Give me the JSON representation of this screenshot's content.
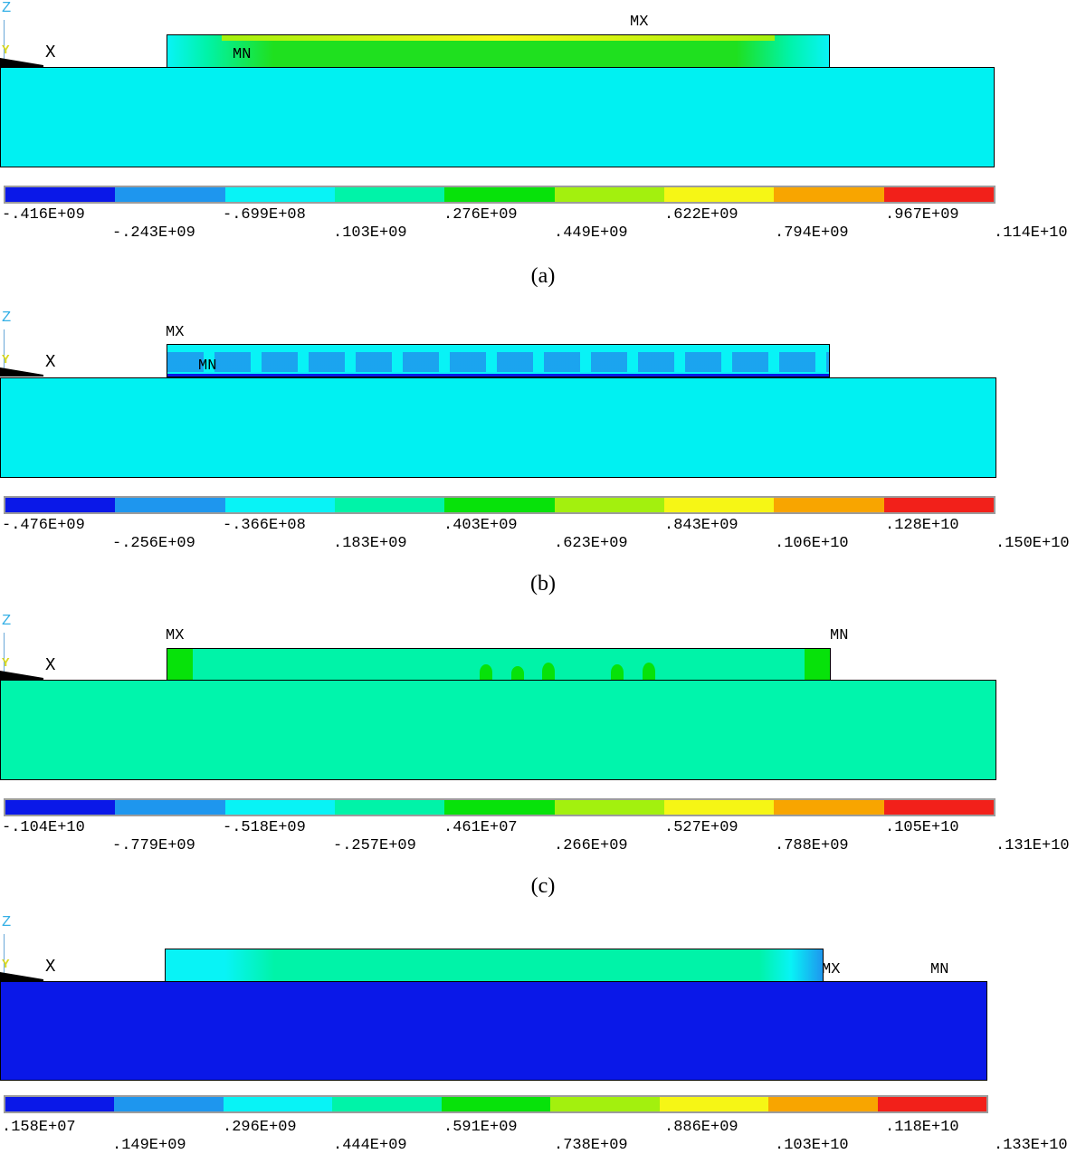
{
  "axes": {
    "z": "Z",
    "y": "Y",
    "x": "X"
  },
  "markers": {
    "mx": "MX",
    "mn": "MN"
  },
  "colors": [
    "#0a18e8",
    "#1e96ee",
    "#08f3f6",
    "#00f3a8",
    "#07e20a",
    "#a3f00e",
    "#f6f615",
    "#f8a500",
    "#f2201a"
  ],
  "panels": [
    {
      "caption": "(a)",
      "substrate_color": "#00f1f2",
      "film_color": "#1fe01f",
      "legend_top": [
        "-.416E+09",
        "-.699E+08",
        ".276E+09",
        ".622E+09",
        ".967E+09"
      ],
      "legend_bottom": [
        "-.243E+09",
        ".103E+09",
        ".449E+09",
        ".794E+09",
        ".114E+10"
      ]
    },
    {
      "caption": "(b)",
      "substrate_color": "#00f1f2",
      "film_color": "#1e96ee",
      "legend_top": [
        "-.476E+09",
        "-.366E+08",
        ".403E+09",
        ".843E+09",
        ".128E+10"
      ],
      "legend_bottom": [
        "-.256E+09",
        ".183E+09",
        ".623E+09",
        ".106E+10",
        ".150E+10"
      ]
    },
    {
      "caption": "(c)",
      "substrate_color": "#00f5ac",
      "film_color": "#00f3a8",
      "legend_top": [
        "-.104E+10",
        "-.518E+09",
        ".461E+07",
        ".527E+09",
        ".105E+10"
      ],
      "legend_bottom": [
        "-.779E+09",
        "-.257E+09",
        ".266E+09",
        ".788E+09",
        ".131E+10"
      ]
    },
    {
      "caption": "",
      "substrate_color": "#0a18e8",
      "film_color": "#00f3a8",
      "legend_top": [
        ".158E+07",
        ".296E+09",
        ".591E+09",
        ".886E+09",
        ".118E+10"
      ],
      "legend_bottom": [
        ".149E+09",
        ".444E+09",
        ".738E+09",
        ".103E+10",
        ".133E+10"
      ]
    }
  ]
}
